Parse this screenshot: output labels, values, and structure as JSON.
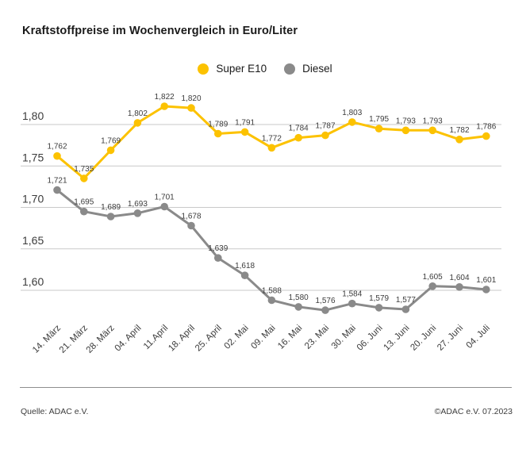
{
  "title": "Kraftstoffpreise im Wochenvergleich in Euro/Liter",
  "legend": [
    {
      "label": "Super E10",
      "color": "#fcc200"
    },
    {
      "label": "Diesel",
      "color": "#8a8a8a"
    }
  ],
  "footer": {
    "source": "Quelle: ADAC e.V.",
    "copyright": "©ADAC e.V. 07.2023"
  },
  "chart_data": {
    "type": "line",
    "title": "Kraftstoffpreise im Wochenvergleich in Euro/Liter",
    "ylabel": "Euro/Liter",
    "grid": true,
    "legend_position": "top-center",
    "ylim": [
      1.555,
      1.845
    ],
    "categories": [
      "14. März",
      "21. März",
      "28. März",
      "04. April",
      "11.April",
      "18. April",
      "25. April",
      "02. Mai",
      "09. Mai",
      "16. Mai",
      "23. Mai",
      "30. Mai",
      "06. Juni",
      "13. Juni",
      "20. Juni",
      "27. Juni",
      "04. Juli"
    ],
    "y_ticks": [
      {
        "value": 1.8,
        "label": "1,80"
      },
      {
        "value": 1.75,
        "label": "1,75"
      },
      {
        "value": 1.7,
        "label": "1,70"
      },
      {
        "value": 1.65,
        "label": "1,65"
      },
      {
        "value": 1.6,
        "label": "1,60"
      }
    ],
    "series": [
      {
        "name": "Super E10",
        "color": "#fcc200",
        "values": [
          1.762,
          1.735,
          1.769,
          1.802,
          1.822,
          1.82,
          1.789,
          1.791,
          1.772,
          1.784,
          1.787,
          1.803,
          1.795,
          1.793,
          1.793,
          1.782,
          1.786
        ]
      },
      {
        "name": "Diesel",
        "color": "#8a8a8a",
        "values": [
          1.721,
          1.695,
          1.689,
          1.693,
          1.701,
          1.678,
          1.639,
          1.618,
          1.588,
          1.58,
          1.576,
          1.584,
          1.579,
          1.577,
          1.605,
          1.604,
          1.601
        ]
      }
    ],
    "colors": {
      "grid_line": "#c9c9c9",
      "text": "#3c3c3c"
    }
  }
}
